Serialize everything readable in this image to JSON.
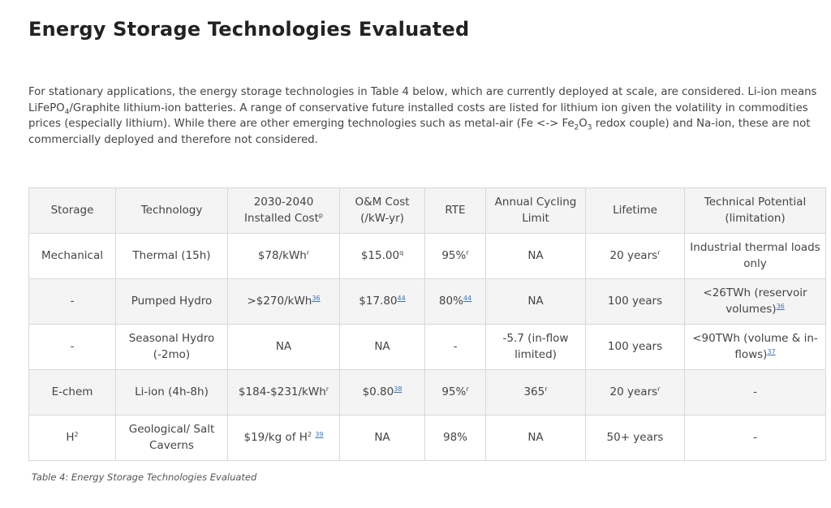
{
  "title": "Energy Storage Technologies Evaluated",
  "intro": {
    "p1": "For stationary applications, the energy storage technologies in Table 4 below, which are currently deployed at scale, are considered. Li-ion means LiFePO",
    "sub1": "4",
    "p2": "/Graphite lithium-ion batteries. A range of conservative future installed costs are listed for lithium ion given the volatility in commodities prices (especially lithium). While there are other emerging technologies such as metal-air (Fe <-> Fe",
    "sub2": "2",
    "p3": "O",
    "sub3": "3",
    "p4": " redox couple) and Na-ion, these are not commercially deployed and therefore not considered."
  },
  "table": {
    "headers": [
      {
        "t": "Storage"
      },
      {
        "t": "Technology"
      },
      {
        "t": "2030-2040 Installed Cost",
        "s": "p"
      },
      {
        "t": "O&M Cost (/kW-yr)"
      },
      {
        "t": "RTE"
      },
      {
        "t": "Annual Cycling Limit"
      },
      {
        "t": "Lifetime"
      },
      {
        "t": "Technical Potential (limitation)"
      }
    ],
    "rows": [
      [
        {
          "t": "Mechanical"
        },
        {
          "t": "Thermal (15h)"
        },
        {
          "t": "$78/kWh",
          "s": "r"
        },
        {
          "t": "$15.00",
          "s": "q"
        },
        {
          "t": "95%",
          "s": "r"
        },
        {
          "t": "NA"
        },
        {
          "t": "20 years",
          "s": "r"
        },
        {
          "t": "Industrial thermal loads only"
        }
      ],
      [
        {
          "t": "-"
        },
        {
          "t": "Pumped Hydro"
        },
        {
          "t": ">$270/kWh",
          "s": "36",
          "l": true
        },
        {
          "t": "$17.80",
          "s": "44",
          "l": true
        },
        {
          "t": "80%",
          "s": "44",
          "l": true
        },
        {
          "t": "NA"
        },
        {
          "t": "100 years"
        },
        {
          "t": "<26TWh (reservoir volumes)",
          "s": "36",
          "l": true
        }
      ],
      [
        {
          "t": "-"
        },
        {
          "t": "Seasonal Hydro (-2mo)"
        },
        {
          "t": "NA"
        },
        {
          "t": "NA"
        },
        {
          "t": "-"
        },
        {
          "t": "-5.7 (in-flow limited)"
        },
        {
          "t": "100 years"
        },
        {
          "t": "<90TWh (volume & in-flows)",
          "s": "37",
          "l": true
        }
      ],
      [
        {
          "t": "E-chem"
        },
        {
          "t": "Li-ion (4h-8h)"
        },
        {
          "t": "$184-$231/kWh",
          "s": "r"
        },
        {
          "t": "$0.80",
          "s": "38",
          "l": true
        },
        {
          "t": "95%",
          "s": "r"
        },
        {
          "t": "365",
          "s": "r"
        },
        {
          "t": "20 years",
          "s": "r"
        },
        {
          "t": "-"
        }
      ],
      [
        {
          "t": "H",
          "s": "2"
        },
        {
          "t": "Geological/ Salt Caverns"
        },
        {
          "t": "$19/kg of H",
          "s": "2",
          "s2": "39"
        },
        {
          "t": "NA"
        },
        {
          "t": "98%"
        },
        {
          "t": "NA"
        },
        {
          "t": "50+ years"
        },
        {
          "t": "-"
        }
      ]
    ]
  },
  "caption": "Table 4: Energy Storage Technologies Evaluated",
  "colors": {
    "link": "#3b73b9",
    "header_bg": "#f4f4f4",
    "border": "#d8d8d8"
  }
}
